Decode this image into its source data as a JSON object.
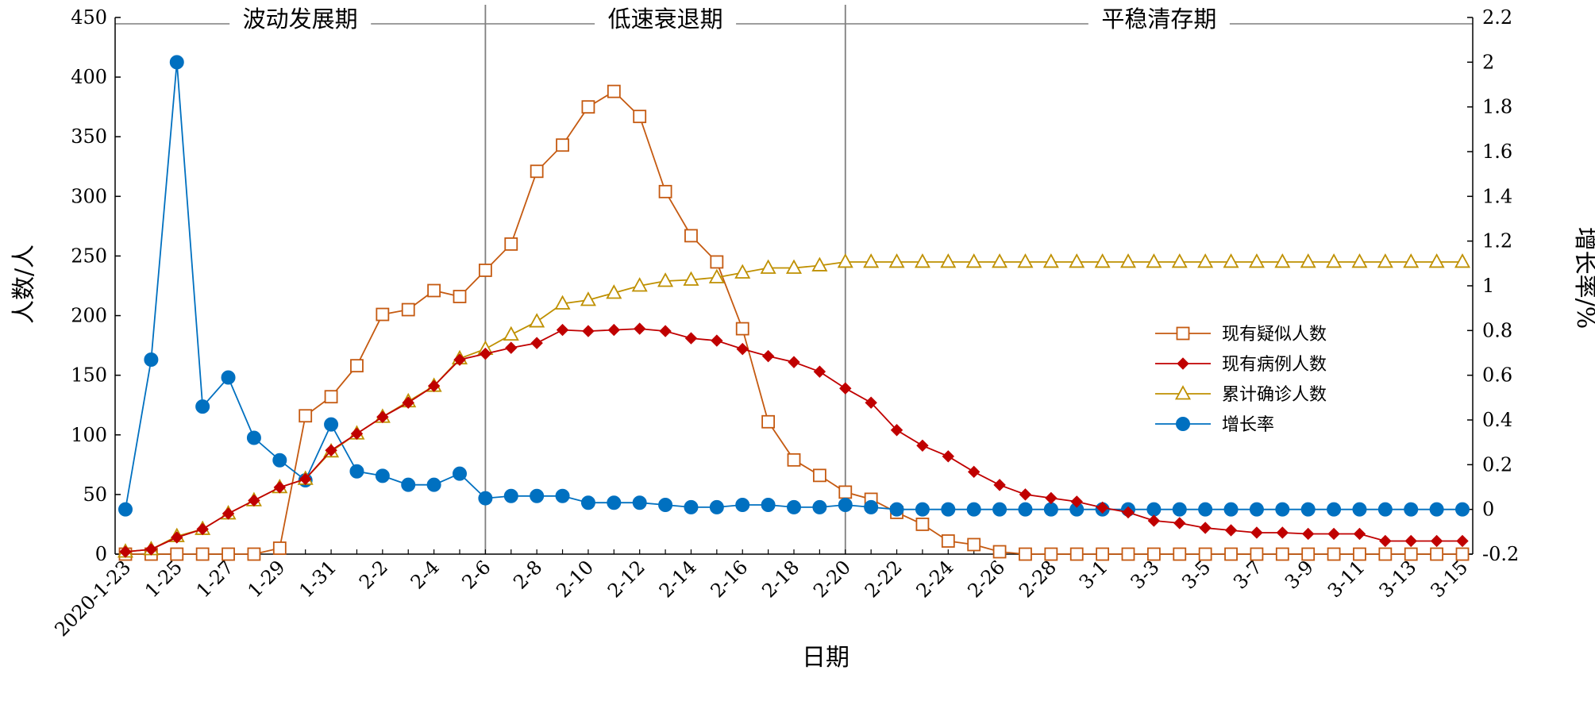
{
  "chart_data": {
    "type": "line",
    "xlabel": "日期",
    "ylabel": "人数/人",
    "y2label": "增长率/%",
    "ylim": [
      0,
      450
    ],
    "y2lim": [
      -0.2,
      2.2
    ],
    "grid": false,
    "legend_position": "right-middle",
    "yticks": [
      "0",
      "50",
      "100",
      "150",
      "200",
      "250",
      "300",
      "350",
      "400",
      "450"
    ],
    "y2ticks": [
      "-0.2",
      "0",
      "0.2",
      "0.4",
      "0.6",
      "0.8",
      "1",
      "1.2",
      "1.4",
      "1.6",
      "1.8",
      "2",
      "2.2"
    ],
    "x": [
      "2020-1-23",
      "1-24",
      "1-25",
      "1-26",
      "1-27",
      "1-28",
      "1-29",
      "1-30",
      "1-31",
      "2-1",
      "2-2",
      "2-3",
      "2-4",
      "2-5",
      "2-6",
      "2-7",
      "2-8",
      "2-9",
      "2-10",
      "2-11",
      "2-12",
      "2-13",
      "2-14",
      "2-15",
      "2-16",
      "2-17",
      "2-18",
      "2-19",
      "2-20",
      "2-21",
      "2-22",
      "2-23",
      "2-24",
      "2-25",
      "2-26",
      "2-27",
      "2-28",
      "2-29",
      "3-1",
      "3-2",
      "3-3",
      "3-4",
      "3-5",
      "3-6",
      "3-7",
      "3-8",
      "3-9",
      "3-10",
      "3-11",
      "3-12",
      "3-13",
      "3-14",
      "3-15"
    ],
    "xtick_labels": [
      "2020-1-23",
      "1-25",
      "1-27",
      "1-29",
      "1-31",
      "2-2",
      "2-4",
      "2-6",
      "2-8",
      "2-10",
      "2-12",
      "2-14",
      "2-16",
      "2-18",
      "2-20",
      "2-22",
      "2-24",
      "2-26",
      "2-28",
      "3-1",
      "3-3",
      "3-5",
      "3-7",
      "3-9",
      "3-11",
      "3-13",
      "3-15"
    ],
    "phases": [
      {
        "label": "波动发展期",
        "start_index": 0,
        "end_index": 14
      },
      {
        "label": "低速衰退期",
        "start_index": 14,
        "end_index": 28
      },
      {
        "label": "平稳清存期",
        "start_index": 28,
        "end_index": 52
      }
    ],
    "phase_dividers": [
      "2-6",
      "2-20"
    ],
    "series": [
      {
        "name": "现有疑似人数",
        "axis": "left",
        "color": "#C55A11",
        "marker": "square-open",
        "values": [
          0,
          0,
          0,
          0,
          0,
          0,
          5,
          116,
          132,
          158,
          201,
          205,
          221,
          216,
          238,
          260,
          321,
          343,
          375,
          388,
          367,
          304,
          267,
          245,
          189,
          111,
          79,
          66,
          52,
          46,
          35,
          25,
          11,
          8,
          2,
          0,
          0,
          0,
          0,
          0,
          0,
          0,
          0,
          0,
          0,
          0,
          0,
          0,
          0,
          0,
          0,
          0,
          0
        ]
      },
      {
        "name": "现有病例人数",
        "axis": "left",
        "color": "#C00000",
        "marker": "diamond-filled",
        "values": [
          2,
          4,
          14,
          21,
          34,
          45,
          56,
          63,
          87,
          101,
          115,
          127,
          141,
          163,
          168,
          173,
          177,
          188,
          187,
          188,
          189,
          187,
          181,
          179,
          172,
          166,
          161,
          153,
          139,
          127,
          104,
          91,
          82,
          69,
          58,
          50,
          47,
          44,
          39,
          35,
          28,
          26,
          22,
          20,
          18,
          18,
          17,
          17,
          17,
          11,
          11,
          11,
          11
        ]
      },
      {
        "name": "累计确诊人数",
        "axis": "left",
        "color": "#BF9000",
        "marker": "triangle-open",
        "values": [
          2,
          4,
          15,
          21,
          34,
          45,
          56,
          63,
          86,
          101,
          115,
          128,
          141,
          164,
          172,
          184,
          195,
          210,
          213,
          219,
          225,
          229,
          230,
          232,
          236,
          240,
          240,
          242,
          245,
          245,
          245,
          245,
          245,
          245,
          245,
          245,
          245,
          245,
          245,
          245,
          245,
          245,
          245,
          245,
          245,
          245,
          245,
          245,
          245,
          245,
          245,
          245,
          245
        ]
      },
      {
        "name": "增长率",
        "axis": "right",
        "color": "#0070C0",
        "marker": "circle-filled",
        "values": [
          0,
          0.67,
          2.0,
          0.46,
          0.59,
          0.32,
          0.22,
          0.13,
          0.38,
          0.17,
          0.15,
          0.11,
          0.11,
          0.16,
          0.05,
          0.06,
          0.06,
          0.06,
          0.03,
          0.03,
          0.03,
          0.02,
          0.01,
          0.01,
          0.02,
          0.02,
          0.01,
          0.01,
          0.02,
          0.01,
          0,
          0,
          0,
          0,
          0,
          0,
          0,
          0,
          0,
          0,
          0,
          0,
          0,
          0,
          0,
          0,
          0,
          0,
          0,
          0,
          0,
          0,
          0
        ]
      }
    ]
  }
}
